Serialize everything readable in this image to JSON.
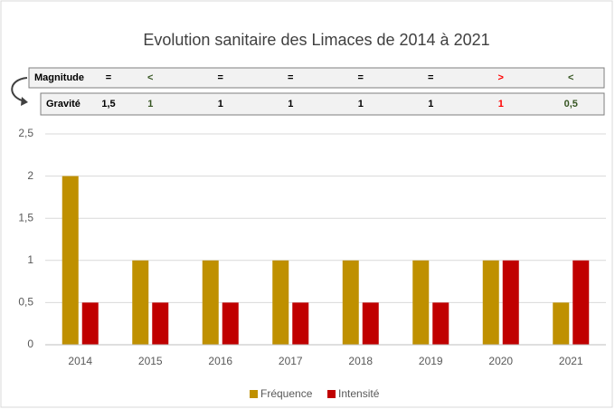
{
  "chart_data": {
    "type": "bar",
    "title": "Evolution sanitaire des Limaces de 2014 à 2021",
    "categories": [
      "2014",
      "2015",
      "2016",
      "2017",
      "2018",
      "2019",
      "2020",
      "2021"
    ],
    "series": [
      {
        "name": "Fréquence",
        "color": "#bf9000",
        "values": [
          2,
          1,
          1,
          1,
          1,
          1,
          1,
          0.5
        ]
      },
      {
        "name": "Intensité",
        "color": "#c00000",
        "values": [
          0.5,
          0.5,
          0.5,
          0.5,
          0.5,
          0.5,
          1,
          1
        ]
      }
    ],
    "ylim": [
      0,
      2.5
    ],
    "yticks": [
      0,
      {
        "value": 0.5,
        "label": "0,5"
      },
      1,
      {
        "value": 1.5,
        "label": "1,5"
      },
      2,
      {
        "value": 2.5,
        "label": "2,5"
      }
    ],
    "grid": true,
    "legend": "bottom",
    "table": [
      {
        "label": "Magnitude",
        "values": [
          "=",
          "<",
          "=",
          "=",
          "=",
          "=",
          ">",
          "<"
        ],
        "colors": [
          "#000000",
          "#375623",
          "#000000",
          "#000000",
          "#000000",
          "#000000",
          "#ff0000",
          "#375623"
        ]
      },
      {
        "label": "Gravité",
        "values": [
          "1,5",
          "1",
          "1",
          "1",
          "1",
          "1",
          "1",
          "0,5"
        ],
        "colors": [
          "#000000",
          "#375623",
          "#000000",
          "#000000",
          "#000000",
          "#000000",
          "#ff0000",
          "#375623"
        ]
      }
    ]
  }
}
